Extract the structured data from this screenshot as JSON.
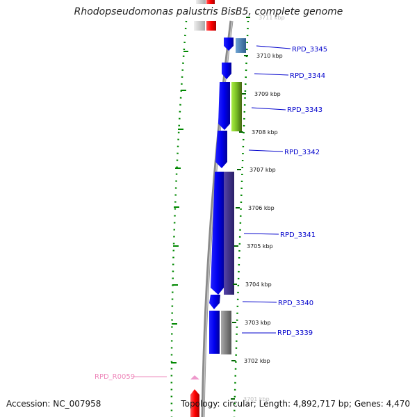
{
  "title": "Rhodopseudomonas palustris BisB5, complete genome",
  "footer": {
    "accession": "Accession: NC_007958",
    "topology": "Topology: circular; Length: 4,892,717 bp; Genes: 4,470"
  },
  "scale": {
    "ticks": [
      "3711 kbp",
      "3710 kbp",
      "3709 kbp",
      "3708 kbp",
      "3707 kbp",
      "3706 kbp",
      "3705 kbp",
      "3704 kbp",
      "3703 kbp",
      "3702 kbp",
      "3701 kbp"
    ]
  },
  "genes": [
    {
      "label": "RPD_3345",
      "color": "#0000cc"
    },
    {
      "label": "RPD_3344",
      "color": "#0000cc"
    },
    {
      "label": "RPD_3343",
      "color": "#0000cc"
    },
    {
      "label": "RPD_3342",
      "color": "#0000cc"
    },
    {
      "label": "RPD_3341",
      "color": "#0000cc"
    },
    {
      "label": "RPD_3340",
      "color": "#0000cc"
    },
    {
      "label": "RPD_3339",
      "color": "#0000cc"
    },
    {
      "label": "RPD_R0059",
      "color": "#ee88bb"
    }
  ],
  "colors": {
    "cds": "#0000ee",
    "cog_steelblue": "#4f86b8",
    "cog_green": "#88cc22",
    "cog_purple": "#443388",
    "cog_gray": "#777777",
    "rrna": "#ff0000",
    "gc_skew": "#008800",
    "backbone": "#888888"
  }
}
